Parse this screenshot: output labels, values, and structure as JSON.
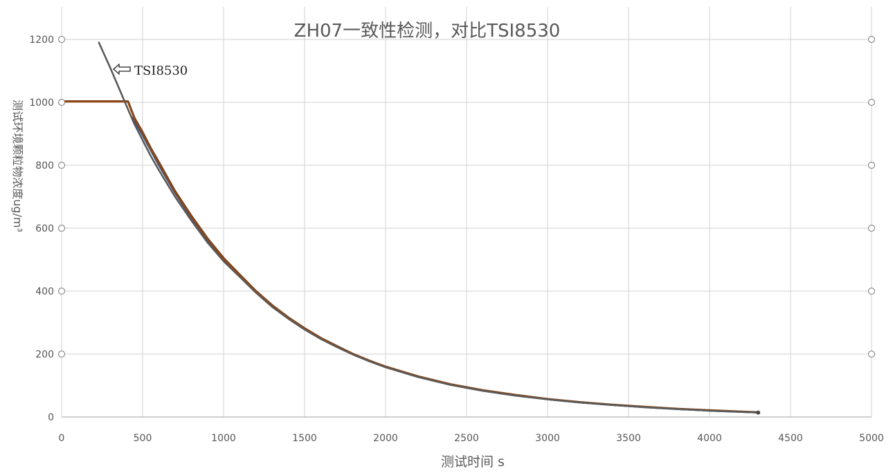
{
  "chart_data": {
    "type": "line",
    "title": "ZH07一致性检测，对比TSI8530",
    "xlabel": "测试时间 s",
    "ylabel": "测试环境颗粒物浓度ug/m³",
    "xlim": [
      0,
      5000
    ],
    "ylim": [
      0,
      1200
    ],
    "x_ticks": [
      "0",
      "500",
      "1000",
      "1500",
      "2000",
      "2500",
      "3000",
      "3500",
      "4000",
      "4500",
      "5000"
    ],
    "y_ticks": [
      "0",
      "200",
      "400",
      "600",
      "800",
      "1000",
      "1200"
    ],
    "grid": true,
    "legend": "none",
    "annotation": {
      "text": "TSI8530",
      "x": 320,
      "y": 1100
    },
    "series": [
      {
        "name": "TSI8530",
        "color": "#5a5a5a",
        "x": [
          230,
          300,
          350,
          400,
          450,
          500,
          550,
          600,
          700,
          800,
          900,
          1000,
          1100,
          1200,
          1300,
          1400,
          1500,
          1600,
          1700,
          1800,
          1900,
          2000,
          2200,
          2400,
          2600,
          2800,
          3000,
          3200,
          3400,
          3600,
          3800,
          4000,
          4200,
          4300
        ],
        "y": [
          1190,
          1110,
          1050,
          990,
          930,
          880,
          830,
          785,
          700,
          625,
          555,
          495,
          445,
          395,
          350,
          312,
          278,
          248,
          222,
          198,
          177,
          158,
          127,
          102,
          83,
          68,
          56,
          46,
          38,
          31,
          25,
          20,
          16,
          14
        ]
      },
      {
        "name": "",
        "color": "#8b4513",
        "x": [
          0,
          100,
          200,
          300,
          350,
          410,
          450,
          500,
          550,
          600,
          700,
          800,
          900,
          1000,
          1100,
          1200,
          1300,
          1400,
          1500,
          1600,
          1700,
          1800,
          1900,
          2000,
          2200,
          2400,
          2600,
          2800,
          3000,
          3200,
          3400,
          3600,
          3800,
          4000,
          4200,
          4300
        ],
        "y": [
          1003,
          1003,
          1003,
          1003,
          1003,
          1003,
          950,
          905,
          855,
          810,
          718,
          640,
          568,
          505,
          452,
          400,
          355,
          316,
          282,
          251,
          225,
          200,
          179,
          160,
          129,
          104,
          85,
          70,
          57,
          47,
          39,
          32,
          26,
          21,
          17,
          15
        ]
      },
      {
        "name": "",
        "color": "#3a5a8a",
        "x": [
          430,
          450,
          500,
          550,
          600,
          700,
          800,
          900,
          1000,
          1100,
          1200,
          1300,
          1400,
          1500,
          1600,
          1700,
          1800,
          1900,
          2000,
          2200,
          2400,
          2600,
          2800,
          3000,
          3200,
          3400,
          3600,
          3800,
          4000,
          4200,
          4300
        ],
        "y": [
          955,
          940,
          895,
          848,
          800,
          712,
          633,
          562,
          500,
          448,
          397,
          352,
          314,
          280,
          249,
          223,
          199,
          178,
          159,
          128,
          103,
          84,
          69,
          56,
          46,
          38,
          31,
          25,
          20,
          16,
          14
        ]
      }
    ]
  }
}
